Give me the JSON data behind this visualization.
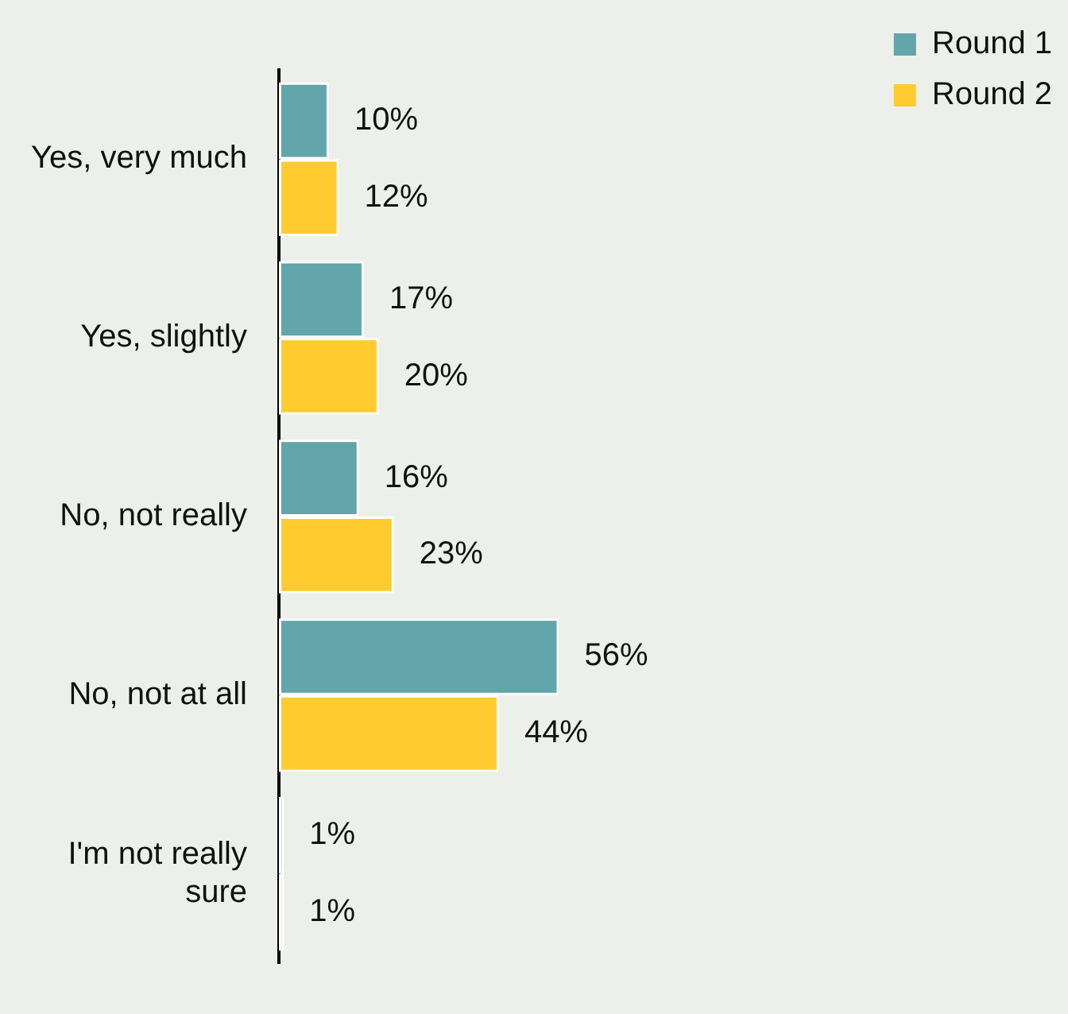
{
  "chart_data": {
    "type": "bar",
    "orientation": "horizontal",
    "categories": [
      "Yes, very much",
      "Yes, slightly",
      "No, not really",
      "No, not at all",
      "I'm not really sure"
    ],
    "series": [
      {
        "name": "Round 1",
        "color": "#62a5aa",
        "values": [
          10,
          17,
          16,
          56,
          1
        ],
        "value_labels": [
          "10%",
          "17%",
          "16%",
          "56%",
          "1%"
        ]
      },
      {
        "name": "Round 2",
        "color": "#ffcb2f",
        "values": [
          12,
          20,
          23,
          44,
          1
        ],
        "value_labels": [
          "12%",
          "20%",
          "23%",
          "44%",
          "1%"
        ]
      }
    ],
    "legend": "top right"
  }
}
